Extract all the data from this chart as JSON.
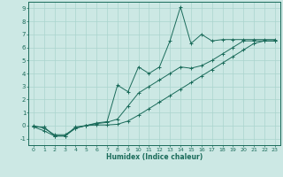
{
  "xlabel": "Humidex (Indice chaleur)",
  "xlim": [
    -0.5,
    23.5
  ],
  "ylim": [
    -1.5,
    9.5
  ],
  "xticks": [
    0,
    1,
    2,
    3,
    4,
    5,
    6,
    7,
    8,
    9,
    10,
    11,
    12,
    13,
    14,
    15,
    16,
    17,
    18,
    19,
    20,
    21,
    22,
    23
  ],
  "yticks": [
    -1,
    0,
    1,
    2,
    3,
    4,
    5,
    6,
    7,
    8,
    9
  ],
  "bg_color": "#cce8e4",
  "line_color": "#1a6b5a",
  "grid_color": "#aad4ce",
  "line_top_x": [
    0,
    1,
    2,
    3,
    4,
    5,
    6,
    7,
    8,
    9,
    10,
    11,
    12,
    13,
    14,
    15,
    16,
    17,
    18,
    19,
    20,
    21,
    22,
    23
  ],
  "line_top_y": [
    -0.1,
    -0.4,
    -0.8,
    -0.8,
    -0.1,
    0.0,
    0.2,
    0.3,
    3.1,
    2.6,
    4.5,
    4.0,
    4.5,
    6.5,
    9.1,
    6.3,
    7.0,
    6.5,
    6.6,
    6.6,
    6.6,
    6.6,
    6.6,
    6.6
  ],
  "line_mid_x": [
    0,
    1,
    2,
    3,
    4,
    5,
    6,
    7,
    8,
    9,
    10,
    11,
    12,
    13,
    14,
    15,
    16,
    17,
    18,
    19,
    20,
    21,
    22,
    23
  ],
  "line_mid_y": [
    0.0,
    -0.2,
    -0.7,
    -0.7,
    -0.2,
    0.0,
    0.15,
    0.25,
    0.5,
    1.5,
    2.5,
    3.0,
    3.5,
    4.0,
    4.5,
    4.4,
    4.6,
    5.0,
    5.5,
    6.0,
    6.5,
    6.5,
    6.5,
    6.5
  ],
  "line_bot_x": [
    0,
    1,
    2,
    3,
    4,
    5,
    6,
    7,
    8,
    9,
    10,
    11,
    12,
    13,
    14,
    15,
    16,
    17,
    18,
    19,
    20,
    21,
    22,
    23
  ],
  "line_bot_y": [
    -0.1,
    -0.1,
    -0.8,
    -0.8,
    -0.2,
    0.0,
    0.05,
    0.05,
    0.1,
    0.35,
    0.8,
    1.3,
    1.8,
    2.3,
    2.8,
    3.3,
    3.8,
    4.3,
    4.8,
    5.3,
    5.8,
    6.3,
    6.5,
    6.5
  ]
}
